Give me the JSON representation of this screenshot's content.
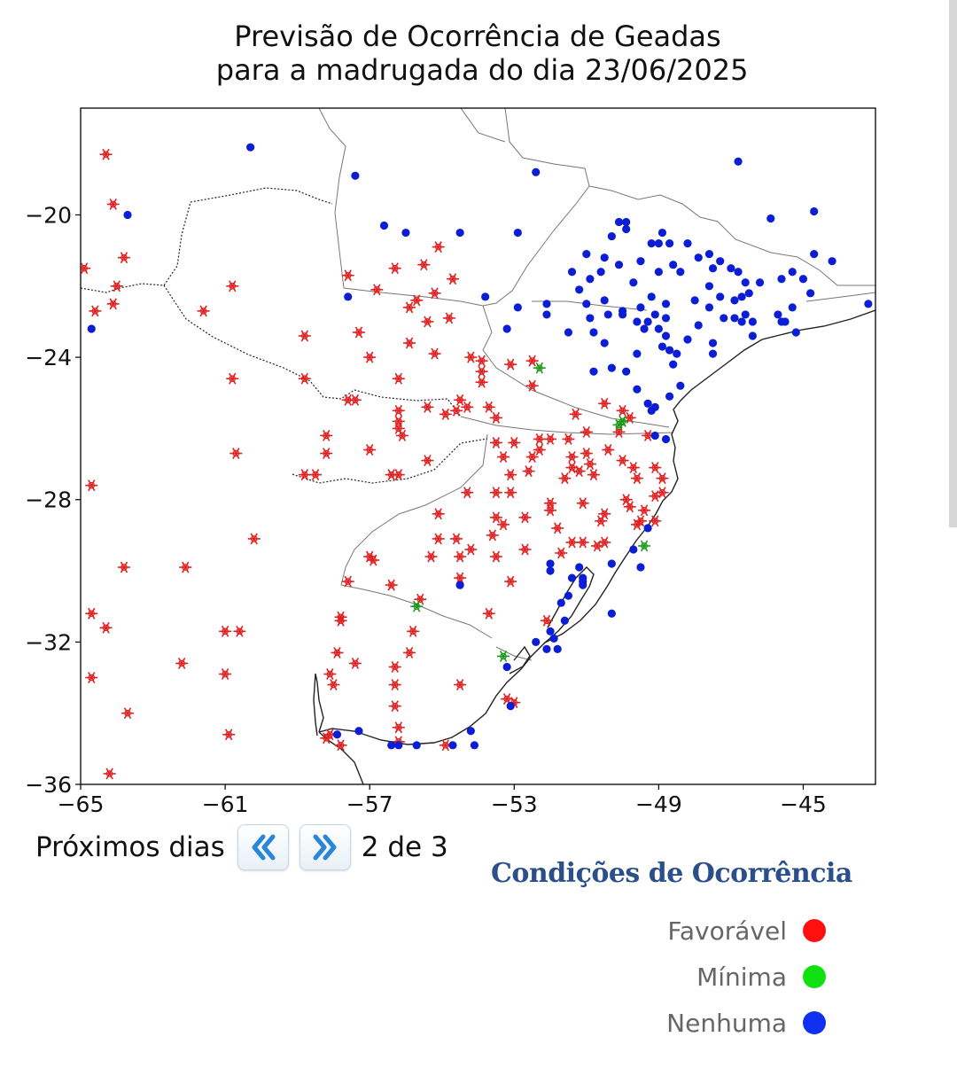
{
  "title": {
    "line1": "Previsão de Ocorrência de Geadas",
    "line2": " para a madrugada do dia 23/06/2025"
  },
  "axes": {
    "xlim": [
      -65,
      -43
    ],
    "ylim": [
      -36,
      -17
    ],
    "xticks": [
      -65,
      -61,
      -57,
      -53,
      -49,
      -45
    ],
    "yticks": [
      -20,
      -24,
      -28,
      -32,
      -36
    ],
    "xtick_labels": [
      "−65",
      "−61",
      "−57",
      "−53",
      "−49",
      "−45"
    ],
    "ytick_labels": [
      "−20",
      "−24",
      "−28",
      "−32",
      "−36"
    ]
  },
  "navigation": {
    "label": "Próximos dias",
    "prev_icon": "double-chevron-left-icon",
    "next_icon": "double-chevron-right-icon",
    "page_text": "2 de 3"
  },
  "legend": {
    "title": "Condições de Ocorrência",
    "items": [
      {
        "label": "Favorável",
        "color": "#ff1010"
      },
      {
        "label": "Mínima",
        "color": "#10e010"
      },
      {
        "label": "Nenhuma",
        "color": "#1030f0"
      }
    ]
  },
  "map_colors": {
    "favoravel": "#e02020",
    "minima": "#1a9a1a",
    "nenhuma": "#0b1ed6",
    "coast": "#222222",
    "border": "#777777"
  },
  "stations": {
    "favoravel_icon": "snowflake-icon",
    "minima_icon": "snowflake-icon",
    "nenhuma_icon": "dot-icon",
    "favoravel": [
      [
        -64.3,
        -18.3
      ],
      [
        -64.1,
        -19.7
      ],
      [
        -63.8,
        -21.2
      ],
      [
        -64.0,
        -22.0
      ],
      [
        -64.1,
        -22.5
      ],
      [
        -64.6,
        -22.7
      ],
      [
        -64.9,
        -21.5
      ],
      [
        -61.6,
        -22.7
      ],
      [
        -60.8,
        -22.0
      ],
      [
        -58.8,
        -23.4
      ],
      [
        -60.8,
        -24.6
      ],
      [
        -58.8,
        -24.6
      ],
      [
        -57.6,
        -21.7
      ],
      [
        -56.8,
        -22.1
      ],
      [
        -57.3,
        -23.3
      ],
      [
        -57.0,
        -24.0
      ],
      [
        -56.3,
        -21.5
      ],
      [
        -55.5,
        -21.4
      ],
      [
        -55.1,
        -20.9
      ],
      [
        -54.7,
        -21.8
      ],
      [
        -55.2,
        -22.2
      ],
      [
        -55.9,
        -22.6
      ],
      [
        -55.7,
        -22.4
      ],
      [
        -55.4,
        -23.0
      ],
      [
        -54.8,
        -22.9
      ],
      [
        -55.9,
        -23.6
      ],
      [
        -55.2,
        -23.9
      ],
      [
        -54.2,
        -24.0
      ],
      [
        -53.9,
        -24.1
      ],
      [
        -53.9,
        -24.4
      ],
      [
        -53.9,
        -24.7
      ],
      [
        -53.1,
        -24.2
      ],
      [
        -52.5,
        -24.1
      ],
      [
        -52.5,
        -24.8
      ],
      [
        -53.7,
        -25.4
      ],
      [
        -54.3,
        -25.4
      ],
      [
        -54.6,
        -25.5
      ],
      [
        -54.9,
        -25.6
      ],
      [
        -54.5,
        -25.2
      ],
      [
        -55.4,
        -25.4
      ],
      [
        -56.2,
        -25.5
      ],
      [
        -56.2,
        -25.8
      ],
      [
        -56.2,
        -26.0
      ],
      [
        -56.1,
        -26.2
      ],
      [
        -56.2,
        -24.6
      ],
      [
        -57.6,
        -25.2
      ],
      [
        -57.4,
        -25.2
      ],
      [
        -58.2,
        -26.2
      ],
      [
        -58.2,
        -26.7
      ],
      [
        -57.0,
        -26.6
      ],
      [
        -58.5,
        -27.3
      ],
      [
        -58.8,
        -27.3
      ],
      [
        -56.4,
        -27.3
      ],
      [
        -56.2,
        -27.3
      ],
      [
        -55.4,
        -26.9
      ],
      [
        -60.7,
        -26.7
      ],
      [
        -64.7,
        -27.6
      ],
      [
        -60.2,
        -29.1
      ],
      [
        -63.8,
        -29.9
      ],
      [
        -62.1,
        -29.9
      ],
      [
        -64.7,
        -31.2
      ],
      [
        -64.3,
        -31.6
      ],
      [
        -64.7,
        -33.0
      ],
      [
        -63.7,
        -34.0
      ],
      [
        -64.2,
        -35.7
      ],
      [
        -62.2,
        -32.6
      ],
      [
        -61.0,
        -32.9
      ],
      [
        -61.0,
        -31.7
      ],
      [
        -60.6,
        -31.7
      ],
      [
        -60.9,
        -34.6
      ],
      [
        -57.6,
        -30.3
      ],
      [
        -57.0,
        -29.6
      ],
      [
        -56.9,
        -29.7
      ],
      [
        -56.4,
        -30.4
      ],
      [
        -57.8,
        -31.3
      ],
      [
        -57.8,
        -31.4
      ],
      [
        -57.9,
        -32.3
      ],
      [
        -58.1,
        -32.9
      ],
      [
        -58.0,
        -33.2
      ],
      [
        -57.4,
        -32.6
      ],
      [
        -56.3,
        -32.7
      ],
      [
        -55.9,
        -32.3
      ],
      [
        -55.8,
        -31.7
      ],
      [
        -56.3,
        -33.2
      ],
      [
        -56.3,
        -33.8
      ],
      [
        -56.2,
        -34.4
      ],
      [
        -58.1,
        -34.6
      ],
      [
        -58.2,
        -34.7
      ],
      [
        -56.2,
        -34.8
      ],
      [
        -57.8,
        -34.9
      ],
      [
        -54.9,
        -34.9
      ],
      [
        -54.5,
        -33.2
      ],
      [
        -53.2,
        -33.6
      ],
      [
        -53.0,
        -33.7
      ],
      [
        -55.6,
        -30.8
      ],
      [
        -54.5,
        -30.2
      ],
      [
        -53.7,
        -31.2
      ],
      [
        -52.1,
        -31.4
      ],
      [
        -53.1,
        -30.3
      ],
      [
        -52.7,
        -29.4
      ],
      [
        -52.7,
        -28.5
      ],
      [
        -53.5,
        -28.5
      ],
      [
        -53.3,
        -28.7
      ],
      [
        -53.6,
        -29.0
      ],
      [
        -53.5,
        -29.6
      ],
      [
        -54.2,
        -29.4
      ],
      [
        -54.6,
        -29.1
      ],
      [
        -55.1,
        -29.1
      ],
      [
        -54.5,
        -29.6
      ],
      [
        -55.3,
        -29.6
      ],
      [
        -55.1,
        -28.4
      ],
      [
        -54.3,
        -27.8
      ],
      [
        -53.5,
        -27.8
      ],
      [
        -53.1,
        -27.8
      ],
      [
        -52.0,
        -28.1
      ],
      [
        -52.0,
        -28.3
      ],
      [
        -51.6,
        -27.4
      ],
      [
        -51.4,
        -27.1
      ],
      [
        -51.2,
        -27.2
      ],
      [
        -51.0,
        -26.7
      ],
      [
        -51.1,
        -28.1
      ],
      [
        -50.5,
        -28.4
      ],
      [
        -50.6,
        -28.6
      ],
      [
        -49.8,
        -28.2
      ],
      [
        -49.6,
        -28.7
      ],
      [
        -49.5,
        -28.6
      ],
      [
        -49.1,
        -28.6
      ],
      [
        -51.8,
        -28.8
      ],
      [
        -51.4,
        -29.2
      ],
      [
        -51.7,
        -29.5
      ],
      [
        -51.1,
        -29.2
      ],
      [
        -50.7,
        -29.3
      ],
      [
        -50.5,
        -29.2
      ],
      [
        -52.3,
        -26.6
      ],
      [
        -52.3,
        -26.3
      ],
      [
        -52.0,
        -26.3
      ],
      [
        -51.5,
        -26.3
      ],
      [
        -51.4,
        -26.8
      ],
      [
        -51.0,
        -26.1
      ],
      [
        -51.3,
        -25.6
      ],
      [
        -50.5,
        -25.3
      ],
      [
        -50.0,
        -25.5
      ],
      [
        -49.8,
        -25.7
      ],
      [
        -50.1,
        -26.1
      ],
      [
        -50.4,
        -26.6
      ],
      [
        -50.0,
        -26.9
      ],
      [
        -50.8,
        -27.3
      ],
      [
        -50.9,
        -27.0
      ],
      [
        -49.7,
        -27.1
      ],
      [
        -49.3,
        -26.2
      ],
      [
        -49.1,
        -27.1
      ],
      [
        -48.9,
        -27.4
      ],
      [
        -49.6,
        -27.4
      ],
      [
        -49.1,
        -27.9
      ],
      [
        -49.4,
        -28.3
      ],
      [
        -48.9,
        -27.8
      ],
      [
        -49.9,
        -28.0
      ],
      [
        -53.5,
        -25.7
      ],
      [
        -53.5,
        -26.4
      ],
      [
        -53.0,
        -26.4
      ],
      [
        -52.5,
        -26.8
      ],
      [
        -53.3,
        -26.8
      ],
      [
        -53.1,
        -27.3
      ],
      [
        -52.6,
        -27.2
      ]
    ],
    "minima": [
      [
        -52.3,
        -24.3
      ],
      [
        -50.0,
        -25.8
      ],
      [
        -50.1,
        -25.9
      ],
      [
        -49.4,
        -29.3
      ],
      [
        -55.7,
        -31.0
      ],
      [
        -53.3,
        -32.4
      ]
    ],
    "nenhuma": [
      [
        -60.3,
        -18.1
      ],
      [
        -57.4,
        -18.9
      ],
      [
        -54.5,
        -20.5
      ],
      [
        -53.8,
        -22.3
      ],
      [
        -56.6,
        -20.3
      ],
      [
        -56.0,
        -20.5
      ],
      [
        -52.9,
        -20.5
      ],
      [
        -52.4,
        -18.8
      ],
      [
        -57.6,
        -22.3
      ],
      [
        -64.7,
        -23.2
      ],
      [
        -63.7,
        -20.0
      ],
      [
        -53.2,
        -23.2
      ],
      [
        -52.9,
        -22.6
      ],
      [
        -52.1,
        -22.5
      ],
      [
        -52.1,
        -22.8
      ],
      [
        -51.5,
        -23.3
      ],
      [
        -50.8,
        -23.3
      ],
      [
        -51.2,
        -22.1
      ],
      [
        -51.0,
        -22.5
      ],
      [
        -50.9,
        -22.9
      ],
      [
        -50.5,
        -22.4
      ],
      [
        -50.4,
        -22.8
      ],
      [
        -50.0,
        -22.8
      ],
      [
        -50.0,
        -22.7
      ],
      [
        -51.0,
        -21.1
      ],
      [
        -50.5,
        -21.2
      ],
      [
        -50.3,
        -20.6
      ],
      [
        -50.1,
        -20.2
      ],
      [
        -49.9,
        -20.4
      ],
      [
        -49.9,
        -20.2
      ],
      [
        -51.4,
        -21.6
      ],
      [
        -50.9,
        -21.8
      ],
      [
        -50.6,
        -21.6
      ],
      [
        -50.1,
        -21.4
      ],
      [
        -50.5,
        -23.6
      ],
      [
        -50.3,
        -24.3
      ],
      [
        -49.9,
        -24.4
      ],
      [
        -50.8,
        -24.4
      ],
      [
        -49.6,
        -23.9
      ],
      [
        -49.6,
        -24.9
      ],
      [
        -49.4,
        -23.2
      ],
      [
        -49.6,
        -23.0
      ],
      [
        -49.3,
        -23.0
      ],
      [
        -49.0,
        -23.2
      ],
      [
        -48.8,
        -23.4
      ],
      [
        -48.9,
        -23.7
      ],
      [
        -49.1,
        -22.8
      ],
      [
        -48.8,
        -22.5
      ],
      [
        -49.2,
        -22.3
      ],
      [
        -49.5,
        -22.6
      ],
      [
        -49.7,
        -21.9
      ],
      [
        -49.5,
        -21.3
      ],
      [
        -49.2,
        -20.8
      ],
      [
        -49.0,
        -20.8
      ],
      [
        -48.4,
        -21.6
      ],
      [
        -48.2,
        -20.8
      ],
      [
        -48.6,
        -21.4
      ],
      [
        -49.0,
        -21.6
      ],
      [
        -48.0,
        -22.4
      ],
      [
        -47.9,
        -21.2
      ],
      [
        -47.6,
        -21.1
      ],
      [
        -47.5,
        -21.5
      ],
      [
        -47.3,
        -21.3
      ],
      [
        -47.0,
        -21.5
      ],
      [
        -46.8,
        -21.6
      ],
      [
        -46.6,
        -21.9
      ],
      [
        -46.2,
        -21.9
      ],
      [
        -47.6,
        -22.0
      ],
      [
        -47.3,
        -22.3
      ],
      [
        -46.9,
        -22.4
      ],
      [
        -46.7,
        -22.3
      ],
      [
        -46.5,
        -22.2
      ],
      [
        -45.6,
        -21.8
      ],
      [
        -45.3,
        -21.6
      ],
      [
        -45.0,
        -21.8
      ],
      [
        -47.6,
        -22.6
      ],
      [
        -47.2,
        -22.9
      ],
      [
        -46.9,
        -22.9
      ],
      [
        -46.6,
        -22.8
      ],
      [
        -46.7,
        -23.0
      ],
      [
        -46.4,
        -23.0
      ],
      [
        -46.4,
        -23.4
      ],
      [
        -45.7,
        -22.8
      ],
      [
        -45.6,
        -23.0
      ],
      [
        -45.3,
        -22.6
      ],
      [
        -44.8,
        -22.2
      ],
      [
        -45.2,
        -23.3
      ],
      [
        -45.5,
        -23.0
      ],
      [
        -44.2,
        -21.3
      ],
      [
        -44.7,
        -21.1
      ],
      [
        -44.7,
        -19.9
      ],
      [
        -45.9,
        -20.1
      ],
      [
        -46.8,
        -18.5
      ],
      [
        -48.9,
        -20.5
      ],
      [
        -48.7,
        -20.8
      ],
      [
        -43.2,
        -22.5
      ],
      [
        -47.9,
        -23.1
      ],
      [
        -48.2,
        -23.5
      ],
      [
        -48.5,
        -23.9
      ],
      [
        -48.7,
        -23.8
      ],
      [
        -47.5,
        -23.6
      ],
      [
        -47.5,
        -23.9
      ],
      [
        -48.8,
        -22.9
      ],
      [
        -48.6,
        -24.2
      ],
      [
        -48.4,
        -24.8
      ],
      [
        -48.7,
        -25.1
      ],
      [
        -49.2,
        -25.5
      ],
      [
        -49.3,
        -25.3
      ],
      [
        -49.1,
        -25.4
      ],
      [
        -49.1,
        -26.2
      ],
      [
        -49.3,
        -28.8
      ],
      [
        -49.7,
        -29.4
      ],
      [
        -49.5,
        -29.9
      ],
      [
        -50.3,
        -29.8
      ],
      [
        -51.2,
        -29.9
      ],
      [
        -51.1,
        -30.2
      ],
      [
        -51.4,
        -30.2
      ],
      [
        -51.1,
        -30.3
      ],
      [
        -51.1,
        -30.4
      ],
      [
        -51.5,
        -30.7
      ],
      [
        -51.7,
        -30.9
      ],
      [
        -52.0,
        -29.8
      ],
      [
        -52.0,
        -30.0
      ],
      [
        -50.3,
        -31.2
      ],
      [
        -51.6,
        -31.4
      ],
      [
        -52.0,
        -31.7
      ],
      [
        -51.9,
        -31.9
      ],
      [
        -52.4,
        -32.0
      ],
      [
        -52.1,
        -32.2
      ],
      [
        -51.8,
        -32.2
      ],
      [
        -53.2,
        -32.7
      ],
      [
        -53.1,
        -33.8
      ],
      [
        -54.1,
        -34.9
      ],
      [
        -54.2,
        -34.5
      ],
      [
        -55.7,
        -34.9
      ],
      [
        -56.2,
        -34.9
      ],
      [
        -56.4,
        -34.9
      ],
      [
        -57.3,
        -34.5
      ],
      [
        -57.9,
        -34.6
      ],
      [
        -54.7,
        -34.9
      ],
      [
        -54.5,
        -30.4
      ],
      [
        -48.8,
        -26.3
      ]
    ]
  }
}
